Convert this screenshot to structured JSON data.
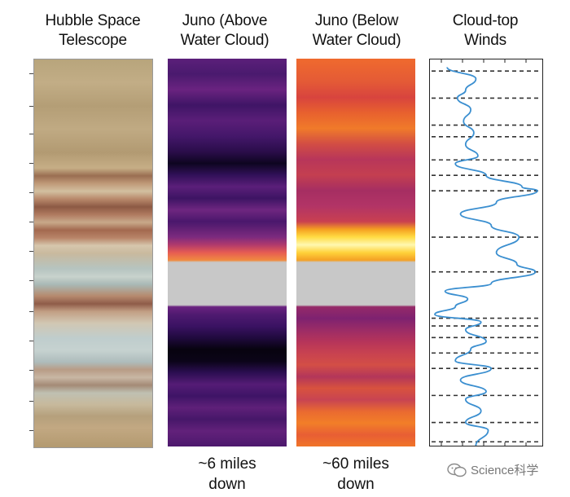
{
  "panels": [
    {
      "title_lines": [
        "Hubble Space",
        "Telescope"
      ],
      "caption_lines": []
    },
    {
      "title_lines": [
        "Juno (Above",
        "Water Cloud)"
      ],
      "caption_lines": [
        "~6 miles",
        "down"
      ]
    },
    {
      "title_lines": [
        "Juno (Below",
        "Water Cloud)"
      ],
      "caption_lines": [
        "~60 miles",
        "down"
      ]
    },
    {
      "title_lines": [
        "Cloud-top",
        "Winds"
      ],
      "caption_lines": []
    }
  ],
  "colors": {
    "gap_gray": "#c8c8c8",
    "wind_line": "#3b8fd0",
    "dashed_line": "#333333"
  },
  "watermark": {
    "text": "Science科学",
    "logo_icon": "wechat-logo-icon"
  },
  "chart_data": {
    "type": "line",
    "title": "Cloud-top Winds",
    "xlabel": "",
    "ylabel": "",
    "grid": false,
    "legend": "none",
    "note": "wind speed profile vs. latitude (vertical axis); horizontal dashed lines mark jet positions",
    "latitude_fraction": [
      0.02,
      0.05,
      0.08,
      0.1,
      0.13,
      0.16,
      0.19,
      0.22,
      0.25,
      0.27,
      0.3,
      0.33,
      0.34,
      0.37,
      0.4,
      0.43,
      0.46,
      0.5,
      0.53,
      0.55,
      0.58,
      0.6,
      0.62,
      0.64,
      0.66,
      0.68,
      0.7,
      0.73,
      0.75,
      0.78,
      0.8,
      0.83,
      0.86,
      0.88,
      0.91,
      0.94,
      0.96,
      1.0
    ],
    "wind_value": [
      0.12,
      0.4,
      0.3,
      0.22,
      0.35,
      0.28,
      0.38,
      0.3,
      0.42,
      0.2,
      0.5,
      0.85,
      1.0,
      0.6,
      0.25,
      0.55,
      0.82,
      0.6,
      0.8,
      0.98,
      0.55,
      0.1,
      0.32,
      0.2,
      0.0,
      0.45,
      0.3,
      0.5,
      0.35,
      0.2,
      0.55,
      0.25,
      0.5,
      0.3,
      0.45,
      0.3,
      0.52,
      0.4
    ],
    "dashed_line_fraction": [
      0.03,
      0.1,
      0.17,
      0.2,
      0.26,
      0.3,
      0.34,
      0.46,
      0.55,
      0.67,
      0.69,
      0.72,
      0.76,
      0.8,
      0.87,
      0.94,
      0.99
    ]
  }
}
